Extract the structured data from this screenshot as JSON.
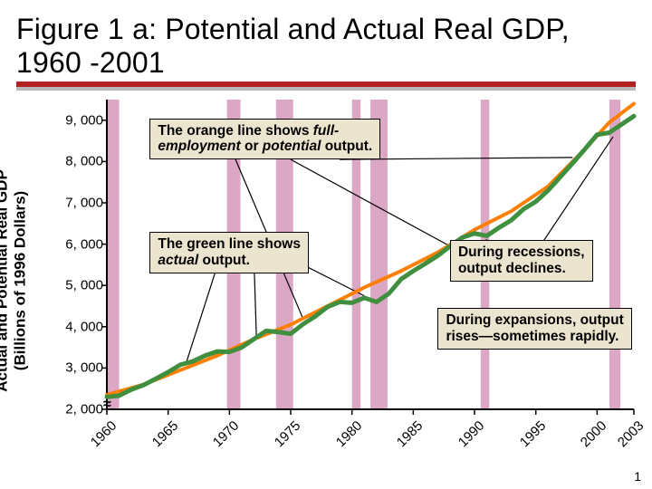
{
  "title": "Figure 1 a:  Potential and Actual Real GDP, 1960 -2001",
  "ylabel_line1": "Actual and Potential Real GDP",
  "ylabel_line2": "(Billions of 1996 Dollars)",
  "page_number": "1",
  "chart": {
    "type": "line",
    "background_color": "#ffffff",
    "xlim": [
      1960,
      2003
    ],
    "ylim": [
      2000,
      9500
    ],
    "yticks": [
      {
        "v": 2000,
        "label": "2, 000"
      },
      {
        "v": 3000,
        "label": "3, 000"
      },
      {
        "v": 4000,
        "label": "4, 000"
      },
      {
        "v": 5000,
        "label": "5, 000"
      },
      {
        "v": 6000,
        "label": "6, 000"
      },
      {
        "v": 7000,
        "label": "7, 000"
      },
      {
        "v": 8000,
        "label": "8, 000"
      },
      {
        "v": 9000,
        "label": "9, 000"
      }
    ],
    "xticks": [
      {
        "v": 1960,
        "label": "1960"
      },
      {
        "v": 1965,
        "label": "1965"
      },
      {
        "v": 1970,
        "label": "1970"
      },
      {
        "v": 1975,
        "label": "1975"
      },
      {
        "v": 1980,
        "label": "1980"
      },
      {
        "v": 1985,
        "label": "1985"
      },
      {
        "v": 1990,
        "label": "1990"
      },
      {
        "v": 1995,
        "label": "1995"
      },
      {
        "v": 2000,
        "label": "2000"
      },
      {
        "v": 2003,
        "label": "2003"
      }
    ],
    "axis_color": "#000000",
    "tick_color": "#000000",
    "recession_color": "#dca7c5",
    "recessions": [
      [
        1960.0,
        1961.0
      ],
      [
        1969.8,
        1970.9
      ],
      [
        1973.8,
        1975.2
      ],
      [
        1980.0,
        1980.7
      ],
      [
        1981.5,
        1982.9
      ],
      [
        1990.5,
        1991.2
      ],
      [
        2001.0,
        2001.9
      ]
    ],
    "potential": {
      "color": "#ff7f00",
      "width": 4,
      "points": [
        [
          1960,
          2350
        ],
        [
          1963,
          2600
        ],
        [
          1966,
          2950
        ],
        [
          1969,
          3300
        ],
        [
          1972,
          3700
        ],
        [
          1975,
          4050
        ],
        [
          1978,
          4500
        ],
        [
          1981,
          4950
        ],
        [
          1984,
          5350
        ],
        [
          1987,
          5800
        ],
        [
          1990,
          6350
        ],
        [
          1993,
          6800
        ],
        [
          1996,
          7400
        ],
        [
          1999,
          8300
        ],
        [
          2001,
          8950
        ],
        [
          2003,
          9400
        ]
      ]
    },
    "actual": {
      "color": "#3f8f3f",
      "width": 5,
      "points": [
        [
          1960,
          2300
        ],
        [
          1961,
          2330
        ],
        [
          1962,
          2480
        ],
        [
          1963,
          2590
        ],
        [
          1964,
          2740
        ],
        [
          1965,
          2900
        ],
        [
          1966,
          3080
        ],
        [
          1967,
          3160
        ],
        [
          1968,
          3300
        ],
        [
          1969,
          3400
        ],
        [
          1970,
          3390
        ],
        [
          1971,
          3500
        ],
        [
          1972,
          3700
        ],
        [
          1973,
          3900
        ],
        [
          1974,
          3870
        ],
        [
          1975,
          3830
        ],
        [
          1976,
          4060
        ],
        [
          1977,
          4250
        ],
        [
          1978,
          4480
        ],
        [
          1979,
          4600
        ],
        [
          1980,
          4580
        ],
        [
          1981,
          4700
        ],
        [
          1982,
          4600
        ],
        [
          1983,
          4800
        ],
        [
          1984,
          5150
        ],
        [
          1985,
          5350
        ],
        [
          1986,
          5530
        ],
        [
          1987,
          5720
        ],
        [
          1988,
          5950
        ],
        [
          1989,
          6160
        ],
        [
          1990,
          6260
        ],
        [
          1991,
          6200
        ],
        [
          1992,
          6400
        ],
        [
          1993,
          6580
        ],
        [
          1994,
          6850
        ],
        [
          1995,
          7030
        ],
        [
          1996,
          7300
        ],
        [
          1997,
          7630
        ],
        [
          1998,
          7960
        ],
        [
          1999,
          8300
        ],
        [
          2000,
          8650
        ],
        [
          2001,
          8700
        ],
        [
          2002,
          8900
        ],
        [
          2003,
          9100
        ]
      ]
    },
    "leader_color": "#000000",
    "leaders_potential": [
      {
        "from": [
          1970.5,
          8050
        ],
        "to": [
          1976.0,
          4200
        ]
      },
      {
        "from": [
          1975.0,
          8050
        ],
        "to": [
          1988.0,
          5950
        ]
      },
      {
        "from": [
          1979.0,
          8050
        ],
        "to": [
          1998.0,
          8100
        ]
      }
    ],
    "leaders_actual": [
      {
        "from": [
          1969.2,
          5650
        ],
        "to": [
          1966.5,
          3150
        ]
      },
      {
        "from": [
          1972.0,
          5650
        ],
        "to": [
          1972.2,
          3780
        ]
      },
      {
        "from": [
          1975.0,
          5650
        ],
        "to": [
          1981.0,
          4750
        ]
      }
    ],
    "leaders_recession": [
      {
        "from": [
          1990.0,
          5450
        ],
        "to": [
          1991.0,
          6120
        ]
      },
      {
        "from": [
          1995.0,
          5800
        ],
        "to": [
          2001.3,
          8600
        ]
      }
    ]
  },
  "annotations": {
    "potential": {
      "html": "The orange line shows <em>full-<br>employment</em> or <em>potential</em> output."
    },
    "actual": {
      "html": "The green line shows<br><em>actual</em> output."
    },
    "recession": {
      "html": "During recessions,<br>output declines."
    },
    "expansion": {
      "html": "During expansions, output<br>rises—sometimes rapidly."
    }
  }
}
